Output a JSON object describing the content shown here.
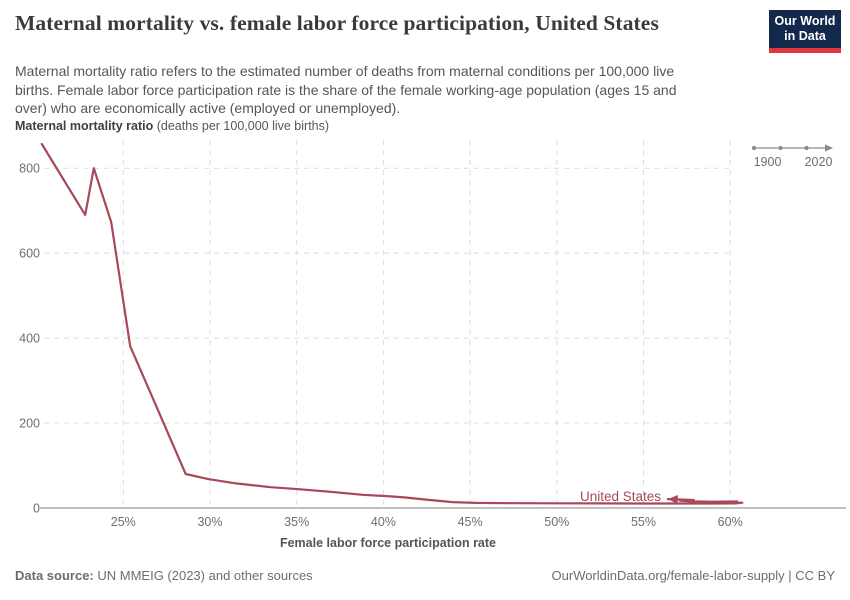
{
  "header": {
    "title": "Maternal mortality vs. female labor force participation, United States",
    "logo_line1": "Our World",
    "logo_line2": "in Data",
    "logo_bg": "#12294b",
    "logo_bar": "#e0373f"
  },
  "subtitle": {
    "line1": "Maternal mortality ratio refers to the estimated number of deaths from maternal conditions per 100,000 live",
    "line2": "births. Female labor force participation rate is the share of the female working-age population (ages 15 and",
    "line3": "over) who are economically active (employed or unemployed)."
  },
  "unit_label": {
    "bold": "Maternal mortality ratio",
    "rest": " (deaths per 100,000 live births)"
  },
  "timeline": {
    "start_label": "1900",
    "end_label": "2020"
  },
  "chart_data": {
    "type": "line",
    "title": "Maternal mortality vs. female labor force participation, United States",
    "xlabel": "Female labor force participation rate",
    "ylabel": "Maternal mortality ratio (deaths per 100,000 live births)",
    "xlim": [
      20.3,
      61.6
    ],
    "ylim": [
      0,
      857
    ],
    "grid": "dashed",
    "legend_position": "inline-end-label",
    "entity_label": "United States",
    "line_color": "#a84858",
    "x_ticks": [
      {
        "v": 25,
        "label": "25%"
      },
      {
        "v": 30,
        "label": "30%"
      },
      {
        "v": 35,
        "label": "35%"
      },
      {
        "v": 40,
        "label": "40%"
      },
      {
        "v": 45,
        "label": "45%"
      },
      {
        "v": 50,
        "label": "50%"
      },
      {
        "v": 55,
        "label": "55%"
      },
      {
        "v": 60,
        "label": "60%"
      }
    ],
    "y_ticks": [
      {
        "v": 0,
        "label": "0"
      },
      {
        "v": 200,
        "label": "200"
      },
      {
        "v": 400,
        "label": "400"
      },
      {
        "v": 600,
        "label": "600"
      },
      {
        "v": 800,
        "label": "800"
      }
    ],
    "series": [
      {
        "name": "United States",
        "points": [
          [
            20.3,
            857
          ],
          [
            22.8,
            690
          ],
          [
            23.3,
            800
          ],
          [
            24.3,
            673
          ],
          [
            25.4,
            381
          ],
          [
            28.6,
            80
          ],
          [
            29.9,
            68
          ],
          [
            31.5,
            58
          ],
          [
            33.5,
            49
          ],
          [
            35.2,
            44
          ],
          [
            37.0,
            38
          ],
          [
            38.8,
            31
          ],
          [
            40.2,
            28
          ],
          [
            41.2,
            25
          ],
          [
            42.6,
            19
          ],
          [
            44.0,
            14
          ],
          [
            45.3,
            12
          ],
          [
            47.5,
            11.4
          ],
          [
            50.0,
            11
          ],
          [
            52.5,
            10.8
          ],
          [
            55.0,
            10.6
          ],
          [
            57.0,
            10.5
          ],
          [
            58.8,
            10.5
          ],
          [
            60.3,
            10.8
          ],
          [
            60.7,
            12.5
          ],
          [
            59.6,
            13.2
          ],
          [
            60.4,
            15.3
          ],
          [
            58.9,
            14.8
          ],
          [
            57.8,
            15.6
          ],
          [
            57.1,
            17.2
          ],
          [
            57.9,
            18.8
          ],
          [
            56.4,
            21
          ]
        ]
      }
    ]
  },
  "footer": {
    "source_bold": "Data source:",
    "source_rest": " UN MMEIG (2023) and other sources",
    "right": "OurWorldinData.org/female-labor-supply | CC BY"
  }
}
